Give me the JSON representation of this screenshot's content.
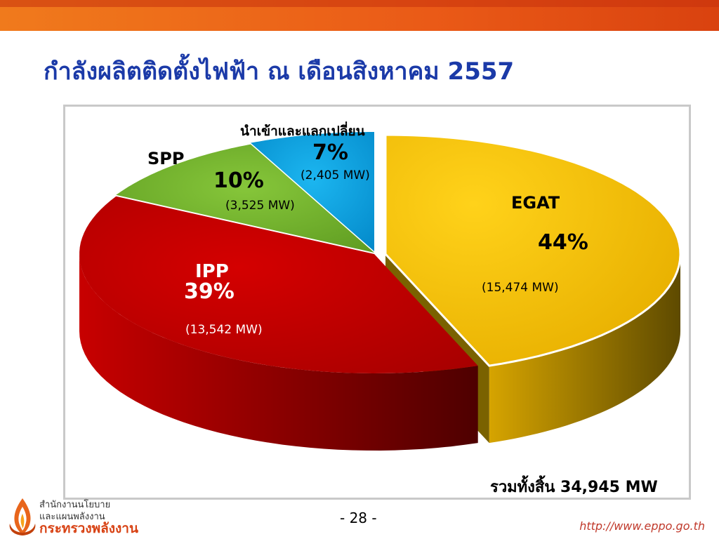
{
  "header": {
    "title": "กำลังผลิตติดตั้งไฟฟ้า ณ เดือนสิงหาคม 2557"
  },
  "chart_data": {
    "type": "pie",
    "slices": [
      {
        "name": "EGAT",
        "percent": "44%",
        "mw": "(15,474 MW)",
        "value": 15474,
        "color": "#f0be00"
      },
      {
        "name": "IPP",
        "percent": "39%",
        "mw": "(13,542 MW)",
        "value": 13542,
        "color": "#c00000"
      },
      {
        "name": "SPP",
        "percent": "10%",
        "mw": "(3,525 MW)",
        "value": 3525,
        "color": "#77b52e"
      },
      {
        "name": "นำเข้าและแลกเปลี่ยน",
        "percent": "7%",
        "mw": "(2,405 MW)",
        "value": 2405,
        "color": "#0aa3e0"
      }
    ],
    "total_label": "รวมทั้งสิ้น 34,945 MW"
  },
  "footer": {
    "page_number": "- 28 -",
    "url": "http://www.eppo.go.th",
    "org_line1": "สำนักงานนโยบาย",
    "org_line2": "และแผนพลังงาน",
    "org_line3": "กระทรวงพลังงาน"
  }
}
